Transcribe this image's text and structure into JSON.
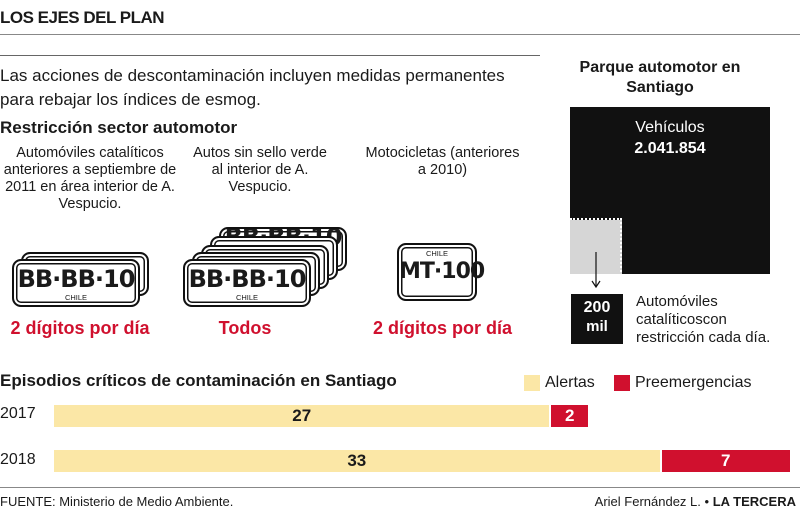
{
  "header": {
    "title": "LOS EJES DEL PLAN"
  },
  "intro": {
    "text": "Las acciones de descontaminación incluyen medidas permanentes para rebajar los índices de esmog."
  },
  "restriction": {
    "title": "Restricción sector automotor",
    "groups": [
      {
        "desc": "Automóviles catalíticos anteriores a septiembre de 2011 en área interior de A. Vespucio.",
        "plate": "BB·BB·10",
        "plate_country": "CHILE",
        "rule": "2 dígitos por día"
      },
      {
        "desc": "Autos sin sello verde al interior de A. Vespucio.",
        "plate": "BB·BB·10",
        "back_plate": "BB·BB·10",
        "plate_country": "CHILE",
        "rule": "Todos"
      },
      {
        "desc": "Motocicletas (anteriores a 2010)",
        "plate": "MT·100",
        "plate_country": "CHILE",
        "rule": "2 dígitos por día"
      }
    ]
  },
  "fleet": {
    "title": "Parque automotor en Santiago",
    "vehicles_label": "Vehículos",
    "vehicles_value": "2.041.854",
    "vehicles_count": 2041854,
    "restricted_number": "200",
    "restricted_unit": "mil",
    "restricted_count": 200000,
    "restricted_desc": "Automóviles catalíticoscon restricción cada día."
  },
  "chart_data": {
    "type": "bar",
    "title": "Episodios críticos de contaminación en Santiago",
    "categories": [
      "2017",
      "2018"
    ],
    "series": [
      {
        "name": "Alertas",
        "values": [
          27,
          33
        ],
        "color": "#fbe7a6"
      },
      {
        "name": "Preemergencias",
        "values": [
          2,
          7
        ],
        "color": "#d0102e"
      }
    ],
    "stacked": true,
    "orientation": "horizontal",
    "legend": "top-right"
  },
  "footer": {
    "source": "FUENTE: Ministerio de Medio Ambiente.",
    "author": "Ariel Fernández L.",
    "separator": "•",
    "publication": "LA TERCERA"
  }
}
